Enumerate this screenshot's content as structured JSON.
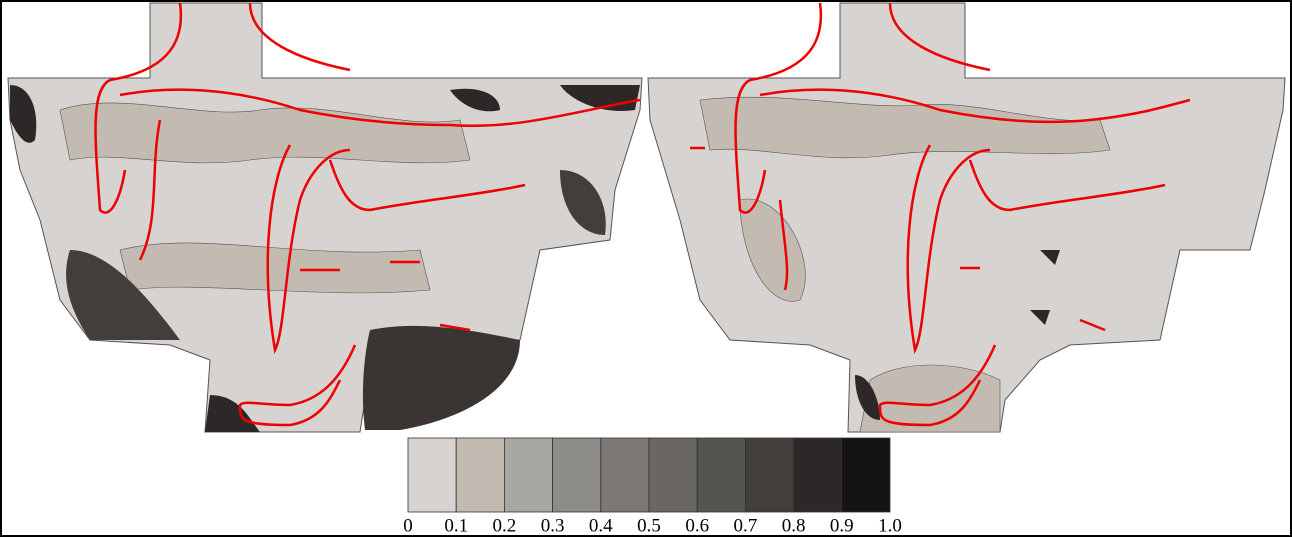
{
  "colorbar": {
    "colors": [
      "#d6d3d0",
      "#c3bab1",
      "#a9a7a2",
      "#8e8c89",
      "#7d7775",
      "#6a6663",
      "#545450",
      "#433e3c",
      "#2d2827",
      "#141414"
    ],
    "ticks": [
      "0",
      "0.1",
      "0.2",
      "0.3",
      "0.4",
      "0.5",
      "0.6",
      "0.7",
      "0.8",
      "0.9",
      "1.0"
    ]
  }
}
